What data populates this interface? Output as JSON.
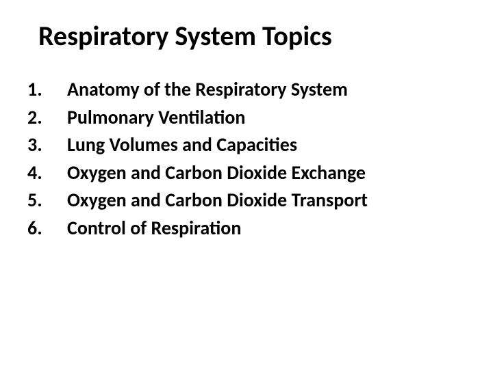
{
  "title": "Respiratory System Topics",
  "title_fontsize": 40,
  "title_weight": 700,
  "item_fontsize": 28,
  "item_weight": 700,
  "text_color": "#000000",
  "background_color": "#ffffff",
  "items": [
    {
      "n": "1.",
      "label": "Anatomy of the Respiratory System"
    },
    {
      "n": "2.",
      "label": "Pulmonary Ventilation"
    },
    {
      "n": "3.",
      "label": "Lung Volumes and Capacities"
    },
    {
      "n": "4.",
      "label": "Oxygen and Carbon Dioxide Exchange"
    },
    {
      "n": "5.",
      "label": "Oxygen and Carbon Dioxide Transport"
    },
    {
      "n": "6.",
      "label": "Control of Respiration"
    }
  ]
}
